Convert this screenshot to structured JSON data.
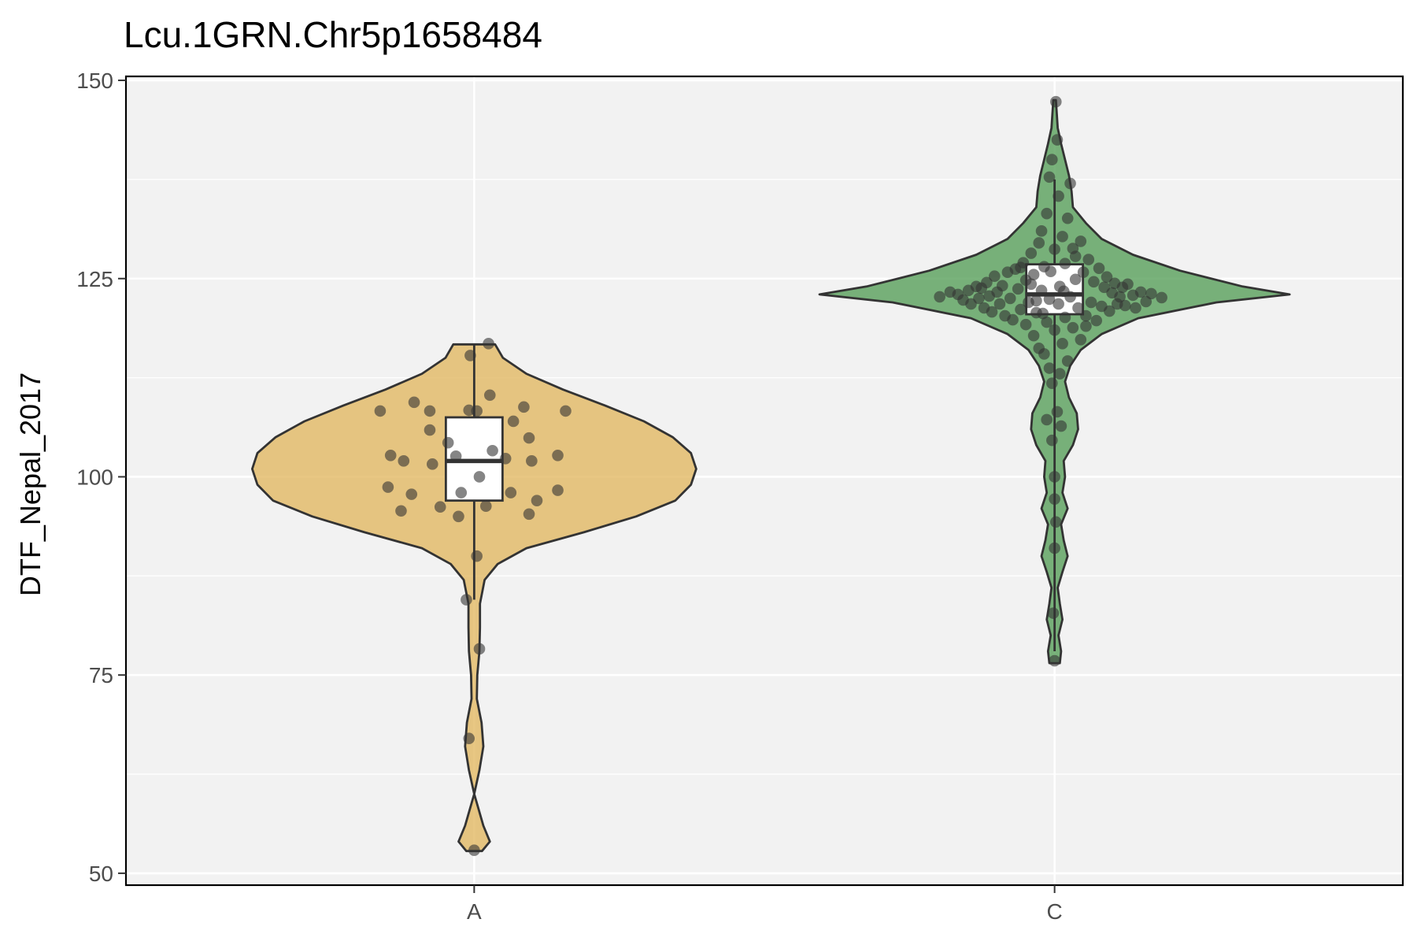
{
  "chart_data": {
    "type": "violin",
    "title": "Lcu.1GRN.Chr5p1658484",
    "xlabel": "",
    "ylabel": "DTF_Nepal_2017",
    "ylim": [
      48.5,
      150.5
    ],
    "y_ticks": [
      50,
      75,
      100,
      125,
      150
    ],
    "categories": [
      "A",
      "C"
    ],
    "grid": true,
    "colors": {
      "A": "#E0B45A",
      "C": "#4E9A50",
      "panel": "#F2F2F2",
      "grid": "#FFFFFF",
      "point": "#333333"
    },
    "groups": [
      {
        "category": "A",
        "box": {
          "min": 84.5,
          "q1": 97,
          "median": 102,
          "q3": 107.5,
          "max": 116.7
        },
        "density": [
          [
            52.8,
            0.03
          ],
          [
            54,
            0.06
          ],
          [
            56,
            0.035
          ],
          [
            60,
            0.0
          ],
          [
            63,
            0.02
          ],
          [
            66,
            0.035
          ],
          [
            69,
            0.028
          ],
          [
            72,
            0.01
          ],
          [
            75,
            0.012
          ],
          [
            78,
            0.02
          ],
          [
            81,
            0.022
          ],
          [
            84,
            0.022
          ],
          [
            87,
            0.04
          ],
          [
            89,
            0.09
          ],
          [
            91,
            0.2
          ],
          [
            93,
            0.42
          ],
          [
            95,
            0.62
          ],
          [
            97,
            0.77
          ],
          [
            99,
            0.83
          ],
          [
            101,
            0.85
          ],
          [
            103,
            0.83
          ],
          [
            105,
            0.76
          ],
          [
            107,
            0.65
          ],
          [
            109,
            0.5
          ],
          [
            111,
            0.34
          ],
          [
            113,
            0.2
          ],
          [
            115,
            0.11
          ],
          [
            116.7,
            0.08
          ]
        ],
        "points": [
          [
            -0.36,
            108.3
          ],
          [
            -0.32,
            102.7
          ],
          [
            -0.33,
            98.7
          ],
          [
            -0.28,
            95.7
          ],
          [
            -0.27,
            102
          ],
          [
            -0.24,
            97.8
          ],
          [
            -0.23,
            109.4
          ],
          [
            -0.17,
            108.3
          ],
          [
            -0.17,
            105.9
          ],
          [
            -0.16,
            101.6
          ],
          [
            -0.13,
            96.2
          ],
          [
            -0.1,
            104.3
          ],
          [
            -0.07,
            102.6
          ],
          [
            -0.06,
            95
          ],
          [
            -0.05,
            98
          ],
          [
            -0.03,
            84.5
          ],
          [
            -0.02,
            108.4
          ],
          [
            -0.02,
            67
          ],
          [
            -0.015,
            115.3
          ],
          [
            0.0,
            52.9
          ],
          [
            0.01,
            108.3
          ],
          [
            0.01,
            90
          ],
          [
            0.02,
            100
          ],
          [
            0.02,
            78.3
          ],
          [
            0.045,
            96.3
          ],
          [
            0.055,
            116.8
          ],
          [
            0.06,
            110.3
          ],
          [
            0.07,
            103.3
          ],
          [
            0.12,
            102.3
          ],
          [
            0.14,
            98
          ],
          [
            0.15,
            107
          ],
          [
            0.19,
            108.8
          ],
          [
            0.21,
            95.3
          ],
          [
            0.21,
            104.9
          ],
          [
            0.22,
            102
          ],
          [
            0.24,
            97
          ],
          [
            0.32,
            102.7
          ],
          [
            0.32,
            98.3
          ],
          [
            0.35,
            108.3
          ]
        ]
      },
      {
        "category": "C",
        "box": {
          "min": 78,
          "q1": 120.5,
          "median": 123,
          "q3": 126.8,
          "max": 137.5
        },
        "density": [
          [
            76.5,
            0.02
          ],
          [
            78,
            0.025
          ],
          [
            80,
            0.015
          ],
          [
            82,
            0.03
          ],
          [
            84,
            0.02
          ],
          [
            86,
            0.012
          ],
          [
            88,
            0.03
          ],
          [
            90,
            0.05
          ],
          [
            92,
            0.035
          ],
          [
            94,
            0.025
          ],
          [
            96,
            0.05
          ],
          [
            98,
            0.03
          ],
          [
            100,
            0.04
          ],
          [
            102,
            0.035
          ],
          [
            104,
            0.07
          ],
          [
            106,
            0.09
          ],
          [
            108,
            0.085
          ],
          [
            110,
            0.055
          ],
          [
            112,
            0.04
          ],
          [
            114,
            0.06
          ],
          [
            116,
            0.1
          ],
          [
            118,
            0.18
          ],
          [
            120,
            0.32
          ],
          [
            122,
            0.62
          ],
          [
            123,
            0.9
          ],
          [
            124,
            0.72
          ],
          [
            126,
            0.48
          ],
          [
            128,
            0.3
          ],
          [
            130,
            0.18
          ],
          [
            132,
            0.12
          ],
          [
            134,
            0.07
          ],
          [
            136,
            0.065
          ],
          [
            138,
            0.055
          ],
          [
            140,
            0.04
          ],
          [
            142,
            0.025
          ],
          [
            144,
            0.012
          ],
          [
            146,
            0.008
          ],
          [
            147.5,
            0.005
          ]
        ],
        "points": [
          [
            -0.44,
            122.7
          ],
          [
            -0.4,
            123.3
          ],
          [
            -0.37,
            123
          ],
          [
            -0.35,
            122.3
          ],
          [
            -0.33,
            123.5
          ],
          [
            -0.32,
            121.8
          ],
          [
            -0.3,
            124
          ],
          [
            -0.29,
            122.5
          ],
          [
            -0.28,
            123.8
          ],
          [
            -0.27,
            121.3
          ],
          [
            -0.26,
            124.5
          ],
          [
            -0.25,
            122.8
          ],
          [
            -0.24,
            120.8
          ],
          [
            -0.23,
            125.3
          ],
          [
            -0.22,
            123.3
          ],
          [
            -0.21,
            121.8
          ],
          [
            -0.2,
            124.1
          ],
          [
            -0.19,
            120.3
          ],
          [
            -0.18,
            125.8
          ],
          [
            -0.17,
            122.5
          ],
          [
            -0.16,
            119.8
          ],
          [
            -0.15,
            126.2
          ],
          [
            -0.14,
            123.7
          ],
          [
            -0.13,
            121.1
          ],
          [
            -0.12,
            127
          ],
          [
            -0.11,
            119.2
          ],
          [
            -0.11,
            124.8
          ],
          [
            -0.1,
            122
          ],
          [
            -0.09,
            128.2
          ],
          [
            -0.08,
            117.8
          ],
          [
            -0.08,
            125.5
          ],
          [
            -0.07,
            120.7
          ],
          [
            -0.06,
            129.5
          ],
          [
            -0.06,
            116.2
          ],
          [
            -0.05,
            123.5
          ],
          [
            -0.05,
            131
          ],
          [
            -0.04,
            115.5
          ],
          [
            -0.04,
            126.5
          ],
          [
            -0.03,
            119.5
          ],
          [
            -0.03,
            133.2
          ],
          [
            -0.03,
            107.2
          ],
          [
            -0.02,
            137.8
          ],
          [
            -0.02,
            113.7
          ],
          [
            -0.02,
            122.4
          ],
          [
            -0.01,
            140
          ],
          [
            -0.01,
            104.6
          ],
          [
            -0.01,
            111.8
          ],
          [
            0.0,
            128.7
          ],
          [
            0.0,
            118.5
          ],
          [
            0.0,
            100
          ],
          [
            0.0,
            97.2
          ],
          [
            0.0,
            91
          ],
          [
            -0.005,
            82.8
          ],
          [
            0.0,
            76.8
          ],
          [
            0.005,
            94.3
          ],
          [
            0.005,
            147.3
          ],
          [
            0.01,
            142.5
          ],
          [
            0.01,
            108.2
          ],
          [
            0.015,
            135.4
          ],
          [
            0.02,
            113
          ],
          [
            0.02,
            124
          ],
          [
            0.025,
            106.4
          ],
          [
            0.03,
            130.3
          ],
          [
            0.03,
            116.8
          ],
          [
            0.04,
            120.1
          ],
          [
            0.04,
            126.9
          ],
          [
            0.05,
            132.6
          ],
          [
            0.05,
            114.6
          ],
          [
            0.06,
            122.7
          ],
          [
            0.06,
            137
          ],
          [
            0.07,
            118.8
          ],
          [
            0.08,
            127.8
          ],
          [
            0.08,
            124.9
          ],
          [
            0.09,
            121.3
          ],
          [
            0.1,
            129.7
          ],
          [
            0.1,
            117.3
          ],
          [
            0.11,
            125.8
          ],
          [
            0.12,
            120.3
          ],
          [
            0.13,
            127.4
          ],
          [
            0.14,
            122
          ],
          [
            0.15,
            124.6
          ],
          [
            0.16,
            119.7
          ],
          [
            0.17,
            126.3
          ],
          [
            0.18,
            121.5
          ],
          [
            0.19,
            123.9
          ],
          [
            0.2,
            125.2
          ],
          [
            0.21,
            120.9
          ],
          [
            0.22,
            123.2
          ],
          [
            0.23,
            124.4
          ],
          [
            0.24,
            121.8
          ],
          [
            0.25,
            122.7
          ],
          [
            0.26,
            123.9
          ],
          [
            0.27,
            121.6
          ],
          [
            0.28,
            124.3
          ],
          [
            0.3,
            122.9
          ],
          [
            0.31,
            121.3
          ],
          [
            0.33,
            123.3
          ],
          [
            0.35,
            122.1
          ],
          [
            0.37,
            123.1
          ],
          [
            0.41,
            122.6
          ],
          [
            -0.09,
            124.3
          ],
          [
            -0.13,
            126.4
          ],
          [
            -0.07,
            122.2
          ],
          [
            0.07,
            128.8
          ],
          [
            0.12,
            119
          ],
          [
            0.015,
            121.8
          ],
          [
            -0.015,
            125.9
          ],
          [
            0.035,
            123.4
          ],
          [
            -0.045,
            120.6
          ]
        ]
      }
    ]
  }
}
